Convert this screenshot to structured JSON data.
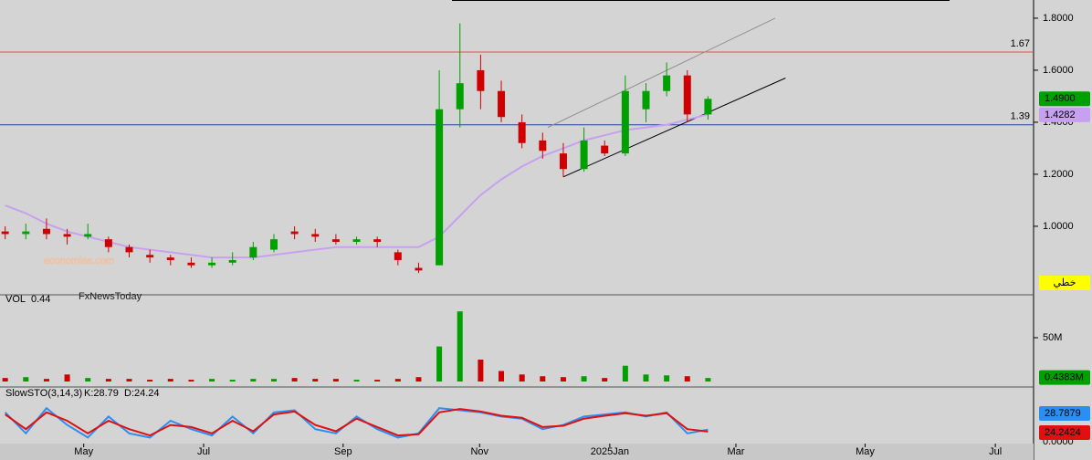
{
  "chart_data": [
    {
      "type": "candlestick",
      "name": "price",
      "x": [
        0.5,
        2.5,
        4.5,
        6.5,
        8.5,
        10.5,
        12.5,
        14.5,
        16.5,
        18.5,
        20.5,
        22.5,
        24.5,
        26.5,
        28.5,
        30.5,
        32.5,
        34.5,
        36.5,
        38.5,
        40.5,
        42.5,
        44.5,
        46.5,
        48.5,
        50.5,
        52.5,
        54.5,
        56.5,
        58.5,
        60.5,
        62.5,
        64.5,
        66.5,
        68.5
      ],
      "open": [
        0.98,
        0.97,
        0.99,
        0.97,
        0.96,
        0.95,
        0.92,
        0.89,
        0.88,
        0.86,
        0.85,
        0.86,
        0.88,
        0.91,
        0.98,
        0.97,
        0.95,
        0.94,
        0.95,
        0.9,
        0.84,
        0.85,
        1.45,
        1.6,
        1.52,
        1.4,
        1.33,
        1.28,
        1.22,
        1.31,
        1.28,
        1.45,
        1.52,
        1.58,
        1.43
      ],
      "high": [
        1.0,
        1.01,
        1.03,
        0.99,
        1.01,
        0.96,
        0.93,
        0.91,
        0.89,
        0.88,
        0.88,
        0.9,
        0.94,
        0.97,
        1.0,
        0.99,
        0.97,
        0.96,
        0.96,
        0.91,
        0.86,
        1.6,
        1.78,
        1.66,
        1.56,
        1.43,
        1.36,
        1.32,
        1.38,
        1.33,
        1.58,
        1.55,
        1.63,
        1.6,
        1.5
      ],
      "low": [
        0.95,
        0.95,
        0.95,
        0.93,
        0.95,
        0.9,
        0.88,
        0.86,
        0.85,
        0.84,
        0.84,
        0.85,
        0.87,
        0.9,
        0.95,
        0.94,
        0.93,
        0.93,
        0.92,
        0.85,
        0.82,
        0.85,
        1.38,
        1.45,
        1.4,
        1.3,
        1.26,
        1.19,
        1.21,
        1.27,
        1.27,
        1.4,
        1.5,
        1.4,
        1.41
      ],
      "close": [
        0.97,
        0.98,
        0.97,
        0.96,
        0.97,
        0.92,
        0.9,
        0.88,
        0.87,
        0.85,
        0.86,
        0.87,
        0.92,
        0.95,
        0.97,
        0.96,
        0.94,
        0.95,
        0.94,
        0.87,
        0.83,
        1.45,
        1.55,
        1.52,
        1.42,
        1.32,
        1.29,
        1.22,
        1.33,
        1.28,
        1.52,
        1.52,
        1.58,
        1.43,
        1.49
      ],
      "ma": {
        "color": "#c8a0f0",
        "values": [
          1.08,
          1.05,
          1.01,
          0.98,
          0.96,
          0.94,
          0.92,
          0.91,
          0.9,
          0.89,
          0.88,
          0.88,
          0.88,
          0.89,
          0.9,
          0.91,
          0.92,
          0.92,
          0.92,
          0.92,
          0.92,
          0.96,
          1.04,
          1.12,
          1.18,
          1.23,
          1.27,
          1.3,
          1.33,
          1.35,
          1.37,
          1.38,
          1.39,
          1.41,
          1.43
        ]
      },
      "up_color": "#00a000",
      "down_color": "#d00000",
      "xlim": [
        0,
        100
      ],
      "ylim": [
        0.74,
        1.87
      ],
      "yticks": [
        {
          "value": 1.0,
          "label": "1.0000"
        },
        {
          "value": 1.2,
          "label": "1.2000"
        },
        {
          "value": 1.4,
          "label": "1.4000"
        },
        {
          "value": 1.6,
          "label": "1.6000"
        },
        {
          "value": 1.8,
          "label": "1.8000"
        }
      ],
      "hlines": [
        {
          "value": 1.67,
          "color": "#e05050"
        },
        {
          "value": 1.39,
          "color": "#2040a0"
        }
      ],
      "trendlines": [
        {
          "x": [
            54.5,
            76
          ],
          "y": [
            1.19,
            1.57
          ],
          "color": "#000000"
        },
        {
          "x": [
            53,
            75
          ],
          "y": [
            1.38,
            1.8
          ],
          "color": "#909090"
        }
      ],
      "badges": [
        {
          "value": 1.49,
          "label": "1.4900",
          "color": "#00a000"
        },
        {
          "value": 1.4282,
          "label": "1.4282",
          "color": "#c8a0f0"
        }
      ],
      "mode_label": "خطي",
      "watermark": [
        "economies.com",
        "FxNewsToday"
      ]
    },
    {
      "type": "bar",
      "name": "volume",
      "title": "VOL",
      "current": "0.44",
      "values": [
        4,
        5,
        3,
        8,
        4,
        3,
        3,
        2,
        3,
        2,
        3,
        2,
        3,
        3,
        4,
        3,
        3,
        2,
        2,
        3,
        5,
        40,
        80,
        25,
        12,
        8,
        6,
        5,
        6,
        4,
        18,
        8,
        7,
        6,
        4
      ],
      "ylim": [
        0,
        100
      ],
      "yticks": [
        {
          "value": 50,
          "label": "50M"
        }
      ],
      "badge": {
        "value": 0.4383,
        "label": "0.4383M"
      }
    },
    {
      "type": "line",
      "name": "stochastic",
      "title": "SlowSTO(3,14,3)",
      "k_label": "K:28.79",
      "d_label": "D:24.24",
      "series": [
        {
          "name": "K",
          "color": "#2a8ff0",
          "values": [
            70,
            20,
            80,
            40,
            10,
            60,
            20,
            10,
            50,
            30,
            15,
            60,
            20,
            70,
            75,
            30,
            20,
            60,
            30,
            10,
            20,
            80,
            75,
            70,
            60,
            55,
            30,
            40,
            60,
            65,
            70,
            60,
            70,
            20,
            28.79
          ]
        },
        {
          "name": "D",
          "color": "#e01010",
          "values": [
            65,
            30,
            70,
            50,
            20,
            50,
            30,
            15,
            40,
            35,
            20,
            50,
            25,
            65,
            72,
            40,
            25,
            55,
            35,
            15,
            18,
            70,
            78,
            72,
            62,
            57,
            35,
            38,
            55,
            62,
            68,
            62,
            68,
            30,
            24.24
          ]
        }
      ],
      "ylim": [
        0,
        100
      ],
      "yticks": [
        {
          "value": 0,
          "label": "0.0000"
        }
      ],
      "badges": [
        {
          "value": 28.79,
          "label": "28.7879",
          "color": "#2a8ff0"
        },
        {
          "value": 24.24,
          "label": "24.2424",
          "color": "#e01010"
        }
      ],
      "xticks": [
        {
          "value": 8.1,
          "label": "May"
        },
        {
          "value": 19.7,
          "label": "Jul"
        },
        {
          "value": 33.2,
          "label": "Sep"
        },
        {
          "value": 46.4,
          "label": "Nov"
        },
        {
          "value": 59.0,
          "label": "2025Jan"
        },
        {
          "value": 71.2,
          "label": "Mar"
        },
        {
          "value": 83.7,
          "label": "May"
        },
        {
          "value": 96.3,
          "label": "Jul"
        }
      ]
    }
  ]
}
